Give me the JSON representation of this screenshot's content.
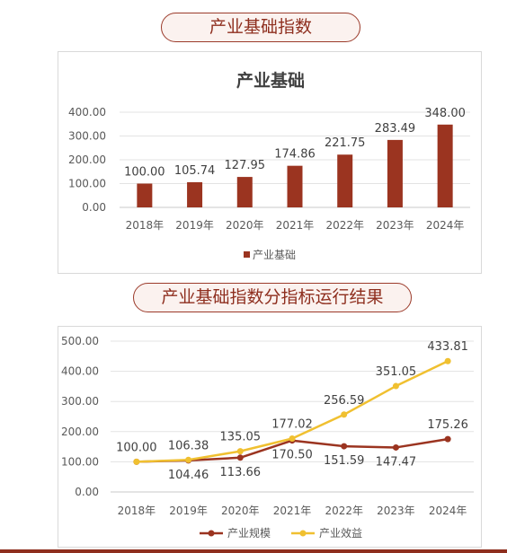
{
  "header1": {
    "title": "产业基础指数"
  },
  "header2": {
    "title": "产业基础指数分指标运行结果"
  },
  "chart_data": [
    {
      "type": "bar",
      "title": "产业基础",
      "categories": [
        "2018年",
        "2019年",
        "2020年",
        "2021年",
        "2022年",
        "2023年",
        "2024年"
      ],
      "series": [
        {
          "name": "产业基础",
          "values": [
            100.0,
            105.74,
            127.95,
            174.86,
            221.75,
            283.49,
            348.0
          ],
          "color": "#9b3420"
        }
      ],
      "yticks": [
        "0.00",
        "100.00",
        "200.00",
        "300.00",
        "400.00"
      ],
      "ylim": [
        0,
        400
      ],
      "grid": true,
      "legend": "bottom"
    },
    {
      "type": "line",
      "title": "",
      "categories": [
        "2018年",
        "2019年",
        "2020年",
        "2021年",
        "2022年",
        "2023年",
        "2024年"
      ],
      "series": [
        {
          "name": "产业规模",
          "values": [
            100.0,
            104.46,
            113.66,
            170.5,
            151.59,
            147.47,
            175.26
          ],
          "color": "#9b3420"
        },
        {
          "name": "产业效益",
          "values": [
            100.0,
            106.38,
            135.05,
            177.02,
            256.59,
            351.05,
            433.81
          ],
          "color": "#f0c030"
        }
      ],
      "yticks": [
        "0.00",
        "100.00",
        "200.00",
        "300.00",
        "400.00",
        "500.00"
      ],
      "ylim": [
        0,
        500
      ],
      "grid": true,
      "legend": "bottom"
    }
  ]
}
